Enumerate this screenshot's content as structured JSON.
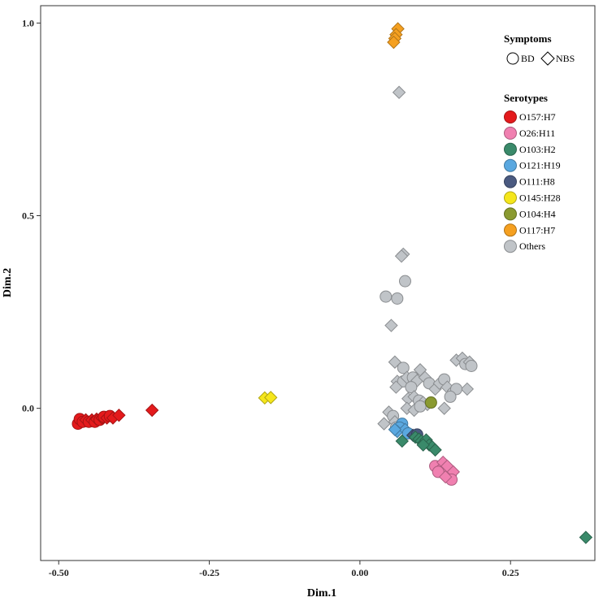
{
  "chart_data": {
    "type": "scatter",
    "xlabel": "Dim.1",
    "ylabel": "Dim.2",
    "xlim": [
      -0.53,
      0.39
    ],
    "ylim": [
      -0.395,
      1.045
    ],
    "x_ticks": [
      -0.5,
      -0.25,
      0.0,
      0.25
    ],
    "x_tick_labels": [
      "-0.50",
      "-0.25",
      "0.00",
      "0.25"
    ],
    "y_ticks": [
      0.0,
      0.5,
      1.0
    ],
    "y_tick_labels": [
      "0.0",
      "0.5",
      "1.0"
    ],
    "grid": false,
    "legend_position": "top-right",
    "legend": {
      "symptoms_title": "Symptoms",
      "symptoms": [
        {
          "shape": "circle",
          "label": "BD"
        },
        {
          "shape": "diamond",
          "label": "NBS"
        }
      ],
      "serotypes_title": "Serotypes",
      "serotypes": [
        {
          "label": "O157:H7",
          "color": "#e41a1c"
        },
        {
          "label": "O26:H11",
          "color": "#f080b0"
        },
        {
          "label": "O103:H2",
          "color": "#3a8a6a"
        },
        {
          "label": "O121:H19",
          "color": "#5aa8e0"
        },
        {
          "label": "O111:H8",
          "color": "#4a5a80"
        },
        {
          "label": "O145:H28",
          "color": "#f5e61c"
        },
        {
          "label": "O104:H4",
          "color": "#8a9a30"
        },
        {
          "label": "O117:H7",
          "color": "#f5a020"
        },
        {
          "label": "Others",
          "color": "#c0c4c8"
        }
      ]
    },
    "series": [
      {
        "name": "Others",
        "color": "#c0c4c8",
        "points": [
          [
            0.065,
            0.82,
            "d"
          ],
          [
            0.072,
            0.4,
            "d"
          ],
          [
            0.069,
            0.395,
            "d"
          ],
          [
            0.075,
            0.33,
            "c"
          ],
          [
            0.043,
            0.29,
            "c"
          ],
          [
            0.062,
            0.285,
            "c"
          ],
          [
            0.052,
            0.215,
            "d"
          ],
          [
            0.058,
            0.12,
            "d"
          ],
          [
            0.072,
            0.105,
            "c"
          ],
          [
            0.062,
            0.07,
            "d"
          ],
          [
            0.072,
            0.07,
            "c"
          ],
          [
            0.078,
            0.08,
            "d"
          ],
          [
            0.088,
            0.08,
            "c"
          ],
          [
            0.095,
            0.072,
            "d"
          ],
          [
            0.1,
            0.1,
            "d"
          ],
          [
            0.108,
            0.08,
            "d"
          ],
          [
            0.115,
            0.065,
            "c"
          ],
          [
            0.06,
            0.055,
            "d"
          ],
          [
            0.085,
            0.055,
            "c"
          ],
          [
            0.125,
            0.05,
            "d"
          ],
          [
            0.132,
            0.065,
            "d"
          ],
          [
            0.14,
            0.075,
            "c"
          ],
          [
            0.145,
            0.055,
            "d"
          ],
          [
            0.16,
            0.125,
            "d"
          ],
          [
            0.17,
            0.13,
            "d"
          ],
          [
            0.175,
            0.115,
            "c"
          ],
          [
            0.182,
            0.12,
            "d"
          ],
          [
            0.185,
            0.11,
            "c"
          ],
          [
            0.178,
            0.05,
            "d"
          ],
          [
            0.155,
            0.045,
            "d"
          ],
          [
            0.16,
            0.05,
            "c"
          ],
          [
            0.15,
            0.03,
            "c"
          ],
          [
            0.14,
            0.0,
            "d"
          ],
          [
            0.08,
            0.025,
            "d"
          ],
          [
            0.09,
            0.03,
            "d"
          ],
          [
            0.098,
            0.02,
            "c"
          ],
          [
            0.105,
            0.015,
            "d"
          ],
          [
            0.112,
            0.01,
            "d"
          ],
          [
            0.078,
            0.0,
            "d"
          ],
          [
            0.09,
            -0.005,
            "d"
          ],
          [
            0.1,
            0.005,
            "c"
          ],
          [
            0.048,
            -0.01,
            "d"
          ],
          [
            0.055,
            -0.02,
            "c"
          ],
          [
            0.04,
            -0.04,
            "d"
          ],
          [
            0.058,
            -0.035,
            "d"
          ],
          [
            0.06,
            -0.05,
            "c"
          ]
        ]
      },
      {
        "name": "O157:H7",
        "color": "#e41a1c",
        "points": [
          [
            -0.468,
            -0.04,
            "c"
          ],
          [
            -0.465,
            -0.028,
            "c"
          ],
          [
            -0.46,
            -0.035,
            "c"
          ],
          [
            -0.455,
            -0.03,
            "d"
          ],
          [
            -0.45,
            -0.035,
            "c"
          ],
          [
            -0.445,
            -0.03,
            "d"
          ],
          [
            -0.44,
            -0.035,
            "c"
          ],
          [
            -0.437,
            -0.028,
            "d"
          ],
          [
            -0.432,
            -0.03,
            "c"
          ],
          [
            -0.428,
            -0.025,
            "d"
          ],
          [
            -0.425,
            -0.022,
            "c"
          ],
          [
            -0.42,
            -0.025,
            "d"
          ],
          [
            -0.415,
            -0.02,
            "c"
          ],
          [
            -0.41,
            -0.025,
            "d"
          ],
          [
            -0.4,
            -0.018,
            "d"
          ],
          [
            -0.345,
            -0.005,
            "d"
          ]
        ]
      },
      {
        "name": "O145:H28",
        "color": "#f5e61c",
        "points": [
          [
            -0.158,
            0.027,
            "d"
          ],
          [
            -0.148,
            0.028,
            "d"
          ]
        ]
      },
      {
        "name": "O117:H7",
        "color": "#f5a020",
        "points": [
          [
            0.063,
            0.985,
            "d"
          ],
          [
            0.06,
            0.97,
            "d"
          ],
          [
            0.058,
            0.96,
            "d"
          ],
          [
            0.056,
            0.95,
            "d"
          ]
        ]
      },
      {
        "name": "O121:H19",
        "color": "#5aa8e0",
        "points": [
          [
            0.07,
            -0.04,
            "c"
          ],
          [
            0.066,
            -0.05,
            "c"
          ],
          [
            0.062,
            -0.06,
            "d"
          ],
          [
            0.075,
            -0.055,
            "d"
          ],
          [
            0.08,
            -0.065,
            "c"
          ],
          [
            0.058,
            -0.055,
            "d"
          ]
        ]
      },
      {
        "name": "O111:H8",
        "color": "#4a5a80",
        "points": [
          [
            0.088,
            -0.07,
            "d"
          ],
          [
            0.095,
            -0.068,
            "c"
          ]
        ]
      },
      {
        "name": "O103:H2",
        "color": "#3a8a6a",
        "points": [
          [
            0.07,
            -0.085,
            "d"
          ],
          [
            0.092,
            -0.075,
            "d"
          ],
          [
            0.098,
            -0.08,
            "d"
          ],
          [
            0.102,
            -0.085,
            "d"
          ],
          [
            0.106,
            -0.09,
            "d"
          ],
          [
            0.11,
            -0.082,
            "d"
          ],
          [
            0.115,
            -0.095,
            "d"
          ],
          [
            0.12,
            -0.1,
            "d"
          ],
          [
            0.125,
            -0.108,
            "d"
          ],
          [
            0.105,
            -0.095,
            "d"
          ],
          [
            0.375,
            -0.335,
            "d"
          ]
        ]
      },
      {
        "name": "O104:H4",
        "color": "#8a9a30",
        "points": [
          [
            0.118,
            0.015,
            "c"
          ]
        ]
      },
      {
        "name": "O26:H11",
        "color": "#f080b0",
        "points": [
          [
            0.125,
            -0.15,
            "c"
          ],
          [
            0.132,
            -0.16,
            "d"
          ],
          [
            0.138,
            -0.14,
            "d"
          ],
          [
            0.14,
            -0.165,
            "c"
          ],
          [
            0.145,
            -0.15,
            "d"
          ],
          [
            0.15,
            -0.175,
            "d"
          ],
          [
            0.155,
            -0.165,
            "d"
          ],
          [
            0.152,
            -0.185,
            "c"
          ],
          [
            0.13,
            -0.165,
            "c"
          ],
          [
            0.142,
            -0.178,
            "d"
          ]
        ]
      }
    ]
  }
}
